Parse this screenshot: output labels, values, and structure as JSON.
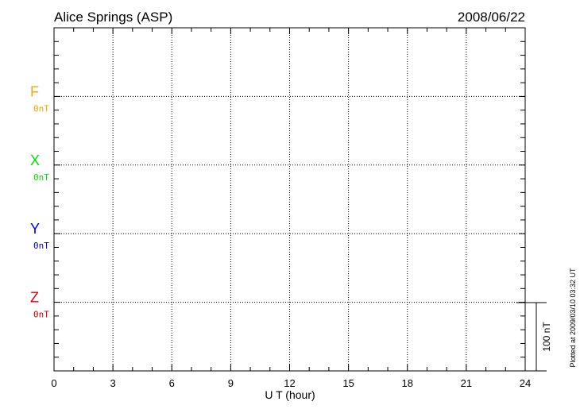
{
  "chart_data": {
    "type": "line",
    "title": "Alice Springs (ASP)",
    "date": "2008/06/22",
    "xlabel": "U T (hour)",
    "xlim": [
      0,
      24
    ],
    "xticks": [
      "0",
      "3",
      "6",
      "9",
      "12",
      "15",
      "18",
      "21",
      "24"
    ],
    "grid": true,
    "series": [
      {
        "name": "F",
        "baseline_label": "0nT",
        "color": "#f5a800",
        "values": []
      },
      {
        "name": "X",
        "baseline_label": "0nT",
        "color": "#00e000",
        "values": []
      },
      {
        "name": "Y",
        "baseline_label": "0nT",
        "color": "#0000e0",
        "values": []
      },
      {
        "name": "Z",
        "baseline_label": "0nT",
        "color": "#e00000",
        "values": []
      }
    ],
    "scale_bar_label": "100 nT",
    "footer": "Plotted at 2009/03/10 03:32 UT"
  }
}
